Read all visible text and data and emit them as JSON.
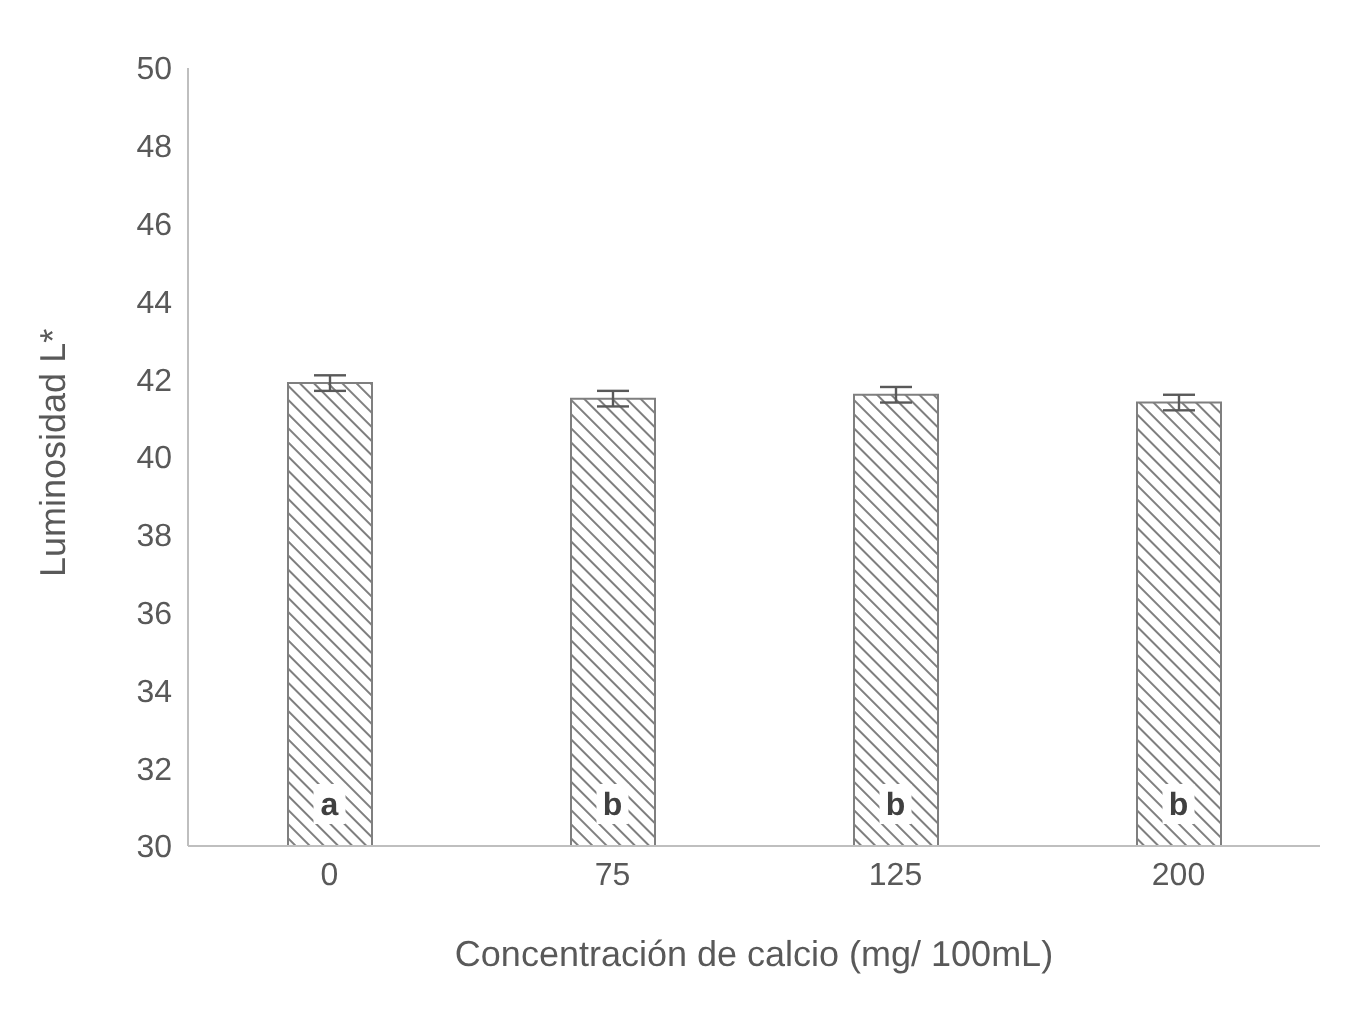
{
  "chart_data": {
    "type": "bar",
    "xlabel": "Concentración de calcio (mg/ 100mL)",
    "ylabel": "Luminosidad L*",
    "categories": [
      "0",
      "75",
      "125",
      "200"
    ],
    "values": [
      41.9,
      41.5,
      41.6,
      41.4
    ],
    "errors": [
      0.2,
      0.2,
      0.2,
      0.2
    ],
    "color": "#7f7f7f",
    "ylim": [
      30,
      50
    ],
    "yticks": [
      30,
      32,
      34,
      36,
      38,
      40,
      42,
      44,
      46,
      48,
      50
    ],
    "grid": false,
    "legend": false,
    "annotations": [
      "a",
      "b",
      "b",
      "b"
    ]
  }
}
